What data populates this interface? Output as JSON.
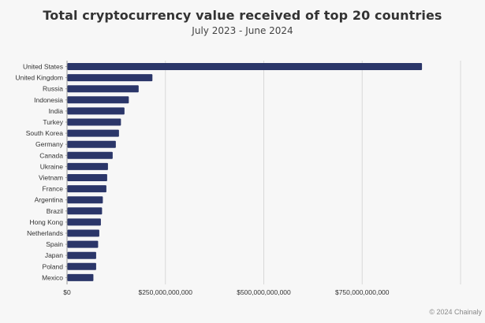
{
  "chart_data": {
    "type": "bar",
    "orientation": "horizontal",
    "title": "Total cryptocurrency value received of top 20 countries",
    "subtitle": "July 2023 - June 2024",
    "xlabel": "",
    "ylabel": "",
    "categories": [
      "United States",
      "United Kingdom",
      "Russia",
      "Indonesia",
      "India",
      "Turkey",
      "South Korea",
      "Germany",
      "Canada",
      "Ukraine",
      "Vietnam",
      "France",
      "Argentina",
      "Brazil",
      "Hong Kong",
      "Netherlands",
      "Spain",
      "Japan",
      "Poland",
      "Mexico"
    ],
    "values": [
      902000000000,
      217000000000,
      182000000000,
      157000000000,
      146000000000,
      137000000000,
      132000000000,
      124000000000,
      116000000000,
      104000000000,
      102000000000,
      100000000000,
      91000000000,
      89000000000,
      86000000000,
      82000000000,
      79000000000,
      74000000000,
      74000000000,
      67000000000
    ],
    "xlim": [
      0,
      1000000000000
    ],
    "xticks": [
      0,
      250000000000,
      500000000000,
      750000000000,
      1000000000000
    ],
    "xtick_labels": [
      "$0",
      "$250,000,000,000",
      "$500,000,000,000",
      "$750,000,000,000",
      ""
    ],
    "grid": true,
    "bar_color": "#2b3669",
    "grid_color": "#d8d8d8",
    "legend": "none"
  },
  "footer": "© 2024 Chainaly"
}
